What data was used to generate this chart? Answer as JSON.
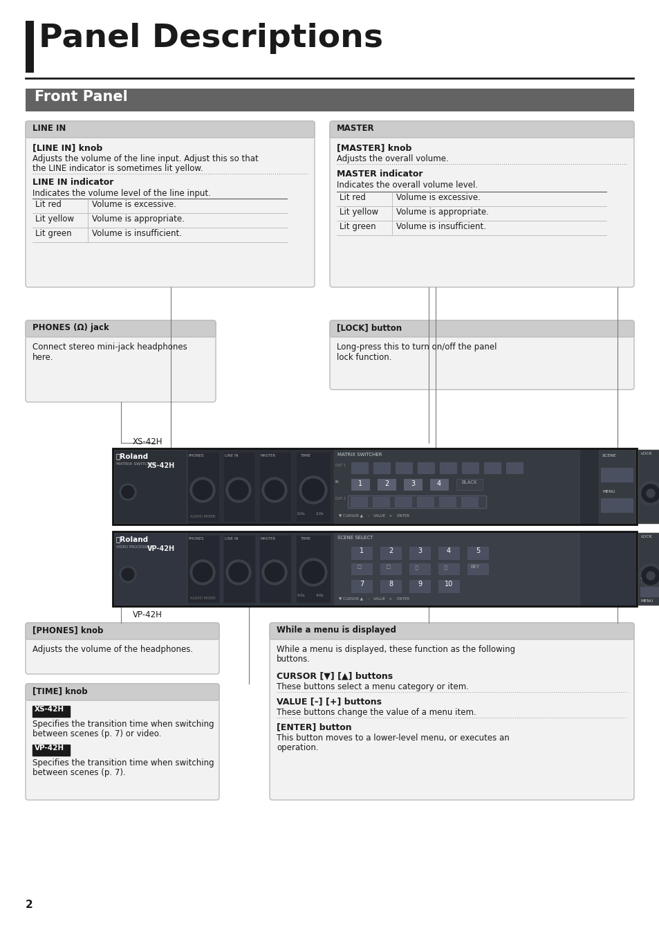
{
  "title": "Panel Descriptions",
  "section_label": "Front Panel",
  "line_in_table": [
    [
      "Lit red",
      "Volume is excessive."
    ],
    [
      "Lit yellow",
      "Volume is appropriate."
    ],
    [
      "Lit green",
      "Volume is insufficient."
    ]
  ],
  "master_table": [
    [
      "Lit red",
      "Volume is excessive."
    ],
    [
      "Lit yellow",
      "Volume is appropriate."
    ],
    [
      "Lit green",
      "Volume is insufficient."
    ]
  ],
  "page_num": "2"
}
